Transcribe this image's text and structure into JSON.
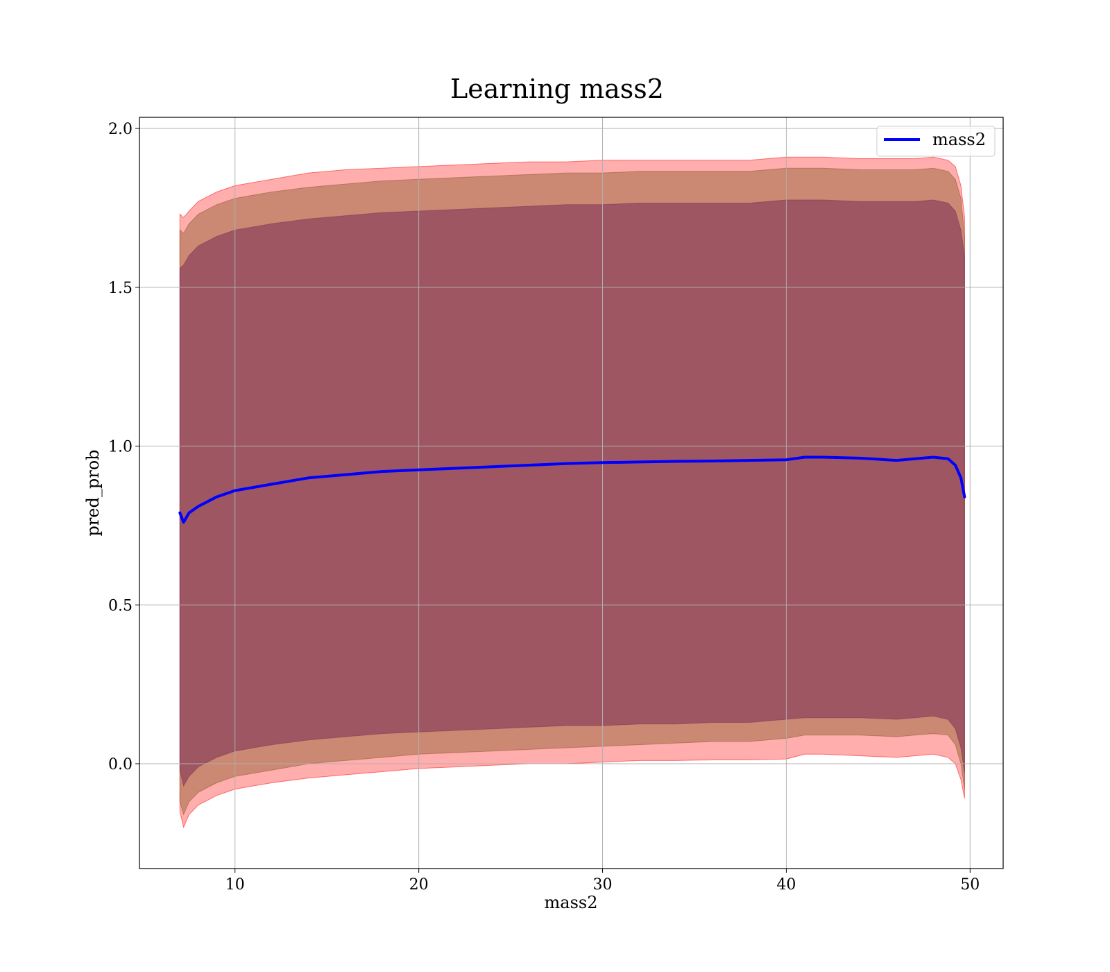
{
  "chart_data": {
    "type": "area",
    "title": "Learning mass2",
    "xlabel": "mass2",
    "ylabel": "pred_prob",
    "xlim": [
      4.8,
      51.8
    ],
    "ylim": [
      -0.33,
      2.035
    ],
    "x_ticks": [
      10,
      20,
      30,
      40,
      50
    ],
    "y_ticks": [
      0.0,
      0.5,
      1.0,
      1.5,
      2.0
    ],
    "x_tick_labels": [
      "10",
      "20",
      "30",
      "40",
      "50"
    ],
    "y_tick_labels": [
      "0.0",
      "0.5",
      "1.0",
      "1.5",
      "2.0"
    ],
    "grid": true,
    "legend": {
      "position": "top-right",
      "entries": [
        "mass2"
      ]
    },
    "colors": {
      "mean_line": "#0000ff",
      "band": "#ff0000",
      "band_overlap": "#8b5a2b",
      "band_inner": "#7a2e55"
    },
    "series": [
      {
        "name": "mass2",
        "x": [
          7.0,
          7.2,
          7.5,
          8.0,
          9.0,
          10.0,
          12.0,
          14.0,
          16.0,
          18.0,
          20.0,
          22.0,
          24.0,
          26.0,
          28.0,
          30.0,
          32.0,
          34.0,
          36.0,
          38.0,
          40.0,
          41.0,
          42.0,
          44.0,
          46.0,
          47.0,
          48.0,
          48.8,
          49.2,
          49.5,
          49.7
        ],
        "values": [
          0.79,
          0.76,
          0.79,
          0.81,
          0.84,
          0.86,
          0.88,
          0.9,
          0.91,
          0.92,
          0.925,
          0.93,
          0.935,
          0.94,
          0.945,
          0.948,
          0.95,
          0.952,
          0.953,
          0.955,
          0.957,
          0.965,
          0.965,
          0.962,
          0.955,
          0.96,
          0.965,
          0.96,
          0.94,
          0.9,
          0.84
        ]
      }
    ],
    "bands": [
      {
        "x": [
          7.0,
          7.2,
          7.5,
          8.0,
          9.0,
          10.0,
          12.0,
          14.0,
          16.0,
          18.0,
          20.0,
          22.0,
          24.0,
          26.0,
          28.0,
          30.0,
          32.0,
          34.0,
          36.0,
          38.0,
          40.0,
          41.0,
          42.0,
          44.0,
          46.0,
          47.0,
          48.0,
          48.8,
          49.2,
          49.5,
          49.7
        ],
        "lower": [
          -0.15,
          -0.2,
          -0.16,
          -0.13,
          -0.1,
          -0.08,
          -0.06,
          -0.045,
          -0.035,
          -0.025,
          -0.015,
          -0.01,
          -0.005,
          0.0,
          0.0,
          0.005,
          0.01,
          0.01,
          0.012,
          0.012,
          0.015,
          0.03,
          0.03,
          0.025,
          0.02,
          0.025,
          0.03,
          0.02,
          0.0,
          -0.05,
          -0.11
        ],
        "upper": [
          1.73,
          1.72,
          1.74,
          1.77,
          1.8,
          1.82,
          1.84,
          1.86,
          1.87,
          1.875,
          1.88,
          1.885,
          1.89,
          1.895,
          1.895,
          1.9,
          1.9,
          1.9,
          1.9,
          1.9,
          1.91,
          1.91,
          1.91,
          1.905,
          1.905,
          1.905,
          1.91,
          1.9,
          1.88,
          1.82,
          1.72
        ]
      },
      {
        "x": [
          7.0,
          7.2,
          7.5,
          8.0,
          9.0,
          10.0,
          12.0,
          14.0,
          16.0,
          18.0,
          20.0,
          22.0,
          24.0,
          26.0,
          28.0,
          30.0,
          32.0,
          34.0,
          36.0,
          38.0,
          40.0,
          41.0,
          42.0,
          44.0,
          46.0,
          47.0,
          48.0,
          48.8,
          49.2,
          49.5,
          49.7
        ],
        "lower": [
          -0.12,
          -0.16,
          -0.12,
          -0.09,
          -0.06,
          -0.04,
          -0.02,
          0.0,
          0.01,
          0.02,
          0.03,
          0.035,
          0.04,
          0.045,
          0.05,
          0.055,
          0.06,
          0.065,
          0.07,
          0.07,
          0.08,
          0.09,
          0.09,
          0.09,
          0.085,
          0.09,
          0.095,
          0.09,
          0.06,
          0.0,
          -0.08
        ],
        "upper": [
          1.68,
          1.67,
          1.7,
          1.73,
          1.76,
          1.78,
          1.8,
          1.815,
          1.825,
          1.835,
          1.84,
          1.845,
          1.85,
          1.855,
          1.86,
          1.86,
          1.865,
          1.865,
          1.865,
          1.865,
          1.875,
          1.875,
          1.875,
          1.87,
          1.87,
          1.87,
          1.875,
          1.865,
          1.84,
          1.78,
          1.66
        ]
      },
      {
        "x": [
          7.0,
          7.2,
          7.5,
          8.0,
          9.0,
          10.0,
          12.0,
          14.0,
          16.0,
          18.0,
          20.0,
          22.0,
          24.0,
          26.0,
          28.0,
          30.0,
          32.0,
          34.0,
          36.0,
          38.0,
          40.0,
          41.0,
          42.0,
          44.0,
          46.0,
          47.0,
          48.0,
          48.8,
          49.2,
          49.5,
          49.7
        ],
        "lower": [
          -0.02,
          -0.07,
          -0.04,
          -0.01,
          0.02,
          0.04,
          0.06,
          0.075,
          0.085,
          0.095,
          0.1,
          0.105,
          0.11,
          0.115,
          0.12,
          0.12,
          0.125,
          0.125,
          0.13,
          0.13,
          0.14,
          0.145,
          0.145,
          0.145,
          0.14,
          0.145,
          0.15,
          0.14,
          0.11,
          0.05,
          -0.03
        ],
        "upper": [
          1.56,
          1.57,
          1.6,
          1.63,
          1.66,
          1.68,
          1.7,
          1.715,
          1.725,
          1.735,
          1.74,
          1.745,
          1.75,
          1.755,
          1.76,
          1.76,
          1.765,
          1.765,
          1.765,
          1.765,
          1.775,
          1.775,
          1.775,
          1.77,
          1.77,
          1.77,
          1.775,
          1.765,
          1.74,
          1.68,
          1.6
        ]
      }
    ]
  }
}
